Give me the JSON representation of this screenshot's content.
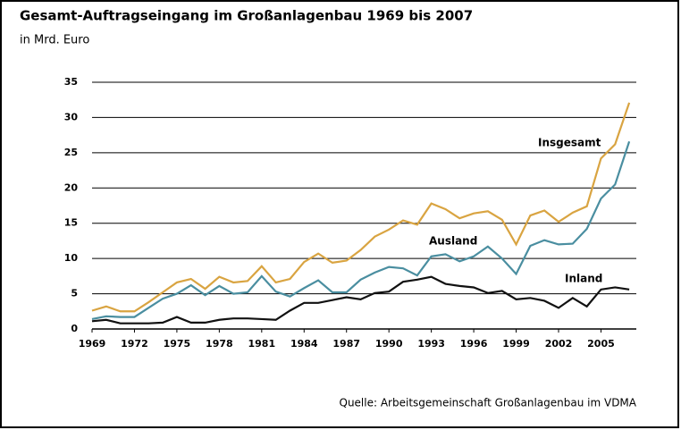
{
  "chart_data": {
    "type": "line",
    "title": "Gesamt-Auftragseingang im Großanlagenbau 1969 bis 2007",
    "subtitle": "in Mrd. Euro",
    "source": "Quelle: Arbeitsgemeinschaft Großanlagenbau im VDMA",
    "x": [
      1969,
      1970,
      1971,
      1972,
      1973,
      1974,
      1975,
      1976,
      1977,
      1978,
      1979,
      1980,
      1981,
      1982,
      1983,
      1984,
      1985,
      1986,
      1987,
      1988,
      1989,
      1990,
      1991,
      1992,
      1993,
      1994,
      1995,
      1996,
      1997,
      1998,
      1999,
      2000,
      2001,
      2002,
      2003,
      2004,
      2005,
      2006,
      2007
    ],
    "series": [
      {
        "name": "Insgesamt",
        "color": "#d9a441",
        "values": [
          2.6,
          3.2,
          2.5,
          2.5,
          3.8,
          5.2,
          6.6,
          7.1,
          5.7,
          7.4,
          6.6,
          6.8,
          8.9,
          6.6,
          7.1,
          9.5,
          10.7,
          9.4,
          9.7,
          11.2,
          13.1,
          14.1,
          15.4,
          14.8,
          17.8,
          17.0,
          15.7,
          16.4,
          16.7,
          15.5,
          12.0,
          16.1,
          16.8,
          15.2,
          16.5,
          17.4,
          24.2,
          26.2,
          32.1
        ]
      },
      {
        "name": "Ausland",
        "color": "#4a8ea0",
        "values": [
          1.4,
          1.8,
          1.7,
          1.7,
          3.0,
          4.3,
          5.0,
          6.2,
          4.8,
          6.1,
          5.0,
          5.2,
          7.5,
          5.3,
          4.6,
          5.8,
          6.9,
          5.2,
          5.2,
          7.0,
          8.0,
          8.8,
          8.6,
          7.6,
          10.3,
          10.6,
          9.6,
          10.3,
          11.7,
          10.0,
          7.8,
          11.8,
          12.6,
          12.0,
          12.1,
          14.2,
          18.5,
          20.5,
          26.6
        ]
      },
      {
        "name": "Inland",
        "color": "#111111",
        "values": [
          1.1,
          1.3,
          0.8,
          0.8,
          0.8,
          0.9,
          1.7,
          0.9,
          0.9,
          1.3,
          1.5,
          1.5,
          1.4,
          1.3,
          2.6,
          3.7,
          3.7,
          4.1,
          4.5,
          4.2,
          5.1,
          5.3,
          6.7,
          7.0,
          7.4,
          6.4,
          6.1,
          5.9,
          5.1,
          5.4,
          4.2,
          4.4,
          4.0,
          3.0,
          4.4,
          3.2,
          5.6,
          5.9,
          5.6
        ]
      }
    ],
    "xlim": [
      1969,
      2007.5
    ],
    "xticks": [
      1969,
      1972,
      1975,
      1978,
      1981,
      1984,
      1987,
      1990,
      1993,
      1996,
      1999,
      2002,
      2005
    ],
    "ylim": [
      0,
      35
    ],
    "yticks": [
      0,
      5,
      10,
      15,
      20,
      25,
      30,
      35
    ],
    "grid": true
  }
}
